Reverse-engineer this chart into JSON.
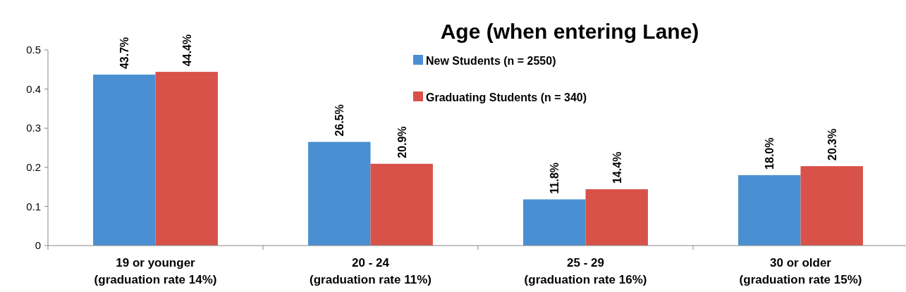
{
  "chart_data": {
    "type": "bar",
    "title": "Age (when entering Lane)",
    "categories": [
      "19 or younger\n(graduation rate 14%)",
      "20 - 24\n(graduation rate 11%)",
      "25 - 29\n(graduation rate 16%)",
      "30 or older\n(graduation rate 15%)"
    ],
    "series": [
      {
        "name": "New Students (n = 2550)",
        "color": "#4a8fd2",
        "values": [
          0.437,
          0.265,
          0.118,
          0.18
        ],
        "value_labels": [
          "43.7%",
          "26.5%",
          "11.8%",
          "18.0%"
        ]
      },
      {
        "name": "Graduating Students (n = 340)",
        "color": "#d8524a",
        "values": [
          0.444,
          0.209,
          0.144,
          0.203
        ],
        "value_labels": [
          "44.4%",
          "20.9%",
          "14.4%",
          "20.3%"
        ]
      }
    ],
    "ylim": [
      0,
      0.5
    ],
    "yticks": [
      0,
      0.1,
      0.2,
      0.3,
      0.4,
      0.5
    ],
    "grid": false,
    "legend": "top"
  }
}
